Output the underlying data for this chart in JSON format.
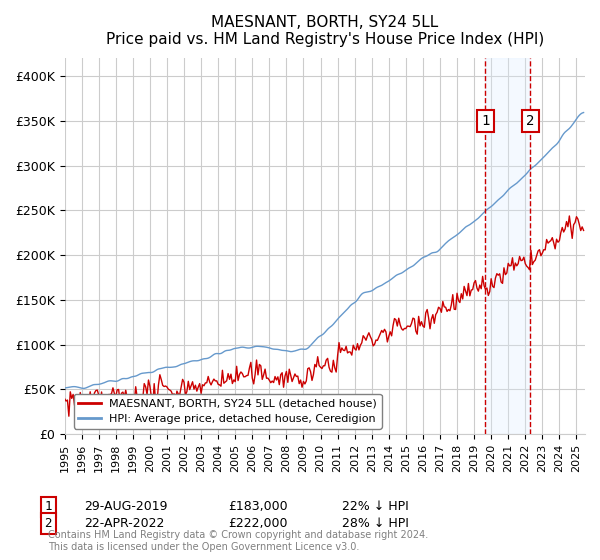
{
  "title": "MAESNANT, BORTH, SY24 5LL",
  "subtitle": "Price paid vs. HM Land Registry's House Price Index (HPI)",
  "ylabel_ticks": [
    0,
    50000,
    100000,
    150000,
    200000,
    250000,
    300000,
    350000,
    400000
  ],
  "ylabel_labels": [
    "£0",
    "£50K",
    "£100K",
    "£150K",
    "£200K",
    "£250K",
    "£300K",
    "£350K",
    "£400K"
  ],
  "ylim": [
    0,
    420000
  ],
  "xlim_start": 1995.0,
  "xlim_end": 2025.5,
  "point1_x": 2019.66,
  "point1_y": 183000,
  "point1_label": "1",
  "point1_date": "29-AUG-2019",
  "point1_price": "£183,000",
  "point1_hpi": "22% ↓ HPI",
  "point2_x": 2022.3,
  "point2_y": 222000,
  "point2_label": "2",
  "point2_date": "22-APR-2022",
  "point2_price": "£222,000",
  "point2_hpi": "28% ↓ HPI",
  "legend_line1": "MAESNANT, BORTH, SY24 5LL (detached house)",
  "legend_line2": "HPI: Average price, detached house, Ceredigion",
  "footnote": "Contains HM Land Registry data © Crown copyright and database right 2024.\nThis data is licensed under the Open Government Licence v3.0.",
  "red_color": "#cc0000",
  "blue_color": "#6699cc",
  "background_color": "#ffffff",
  "grid_color": "#cccccc",
  "shade_color": "#ddeeff"
}
